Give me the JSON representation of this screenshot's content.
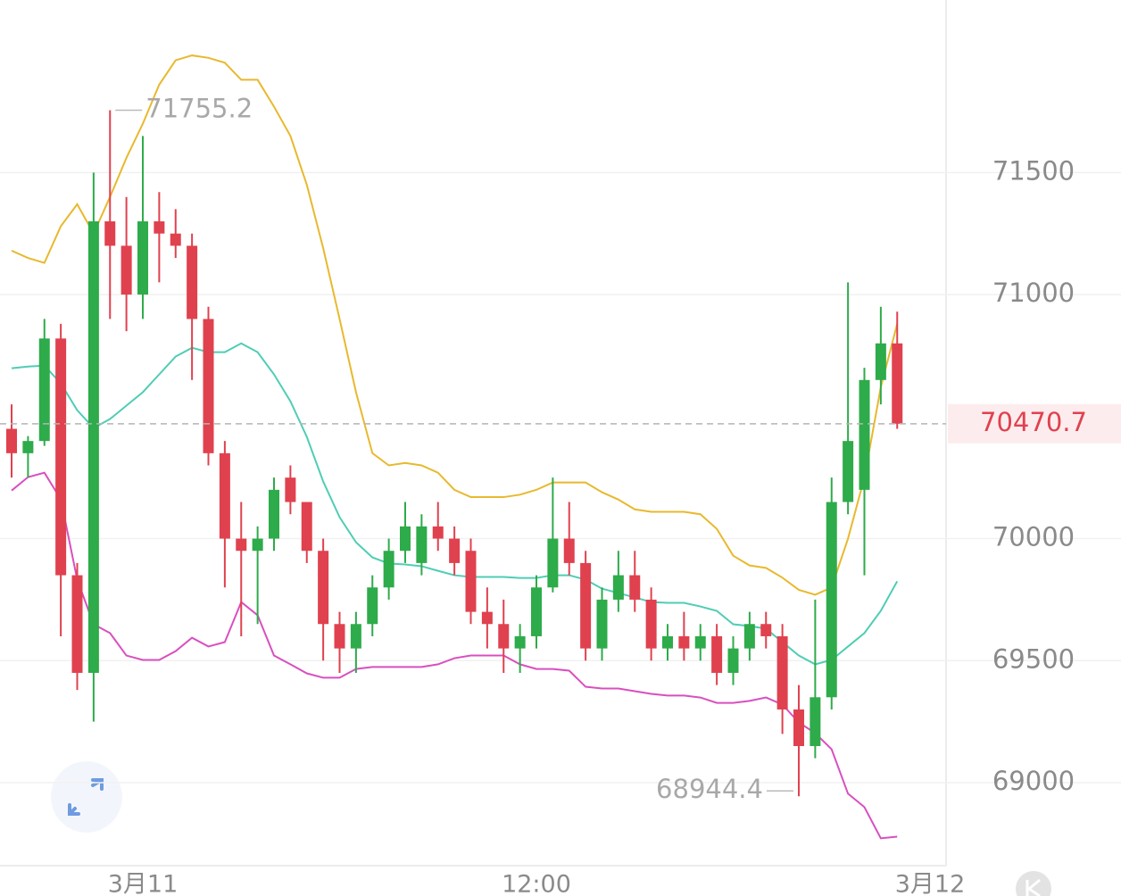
{
  "chart_data": {
    "type": "candlestick",
    "x": [
      -4.0,
      -3.5,
      -3.0,
      -2.5,
      -2.0,
      -1.5,
      -1.0,
      -0.5,
      0.0,
      0.5,
      1.0,
      1.5,
      2.0,
      2.5,
      3.0,
      3.5,
      4.0,
      4.5,
      5.0,
      5.5,
      6.0,
      6.5,
      7.0,
      7.5,
      8.0,
      8.5,
      9.0,
      9.5,
      10.0,
      10.5,
      11.0,
      11.5,
      12.0,
      12.5,
      13.0,
      13.5,
      14.0,
      14.5,
      15.0,
      15.5,
      16.0,
      16.5,
      17.0,
      17.5,
      18.0,
      18.5,
      19.0,
      19.5,
      20.0,
      20.5,
      21.0,
      21.5,
      22.0,
      22.5,
      23.0
    ],
    "open": [
      70450,
      70350,
      70400,
      70820,
      69850,
      69450,
      71300,
      71200,
      71000,
      71300,
      71250,
      71200,
      70900,
      70350,
      70000,
      69950,
      70000,
      70250,
      70150,
      69950,
      69650,
      69550,
      69650,
      69800,
      69950,
      69900,
      70050,
      70000,
      69950,
      69700,
      69650,
      69550,
      69600,
      69800,
      70000,
      69900,
      69550,
      69750,
      69850,
      69750,
      69550,
      69600,
      69550,
      69600,
      69450,
      69550,
      69650,
      69600,
      69300,
      69150,
      69350,
      70150,
      70200,
      70650,
      70800
    ],
    "high": [
      70550,
      70420,
      70900,
      70880,
      69900,
      71500,
      71755.2,
      71400,
      71650,
      71420,
      71350,
      71250,
      70950,
      70400,
      70150,
      70050,
      70250,
      70300,
      70150,
      70000,
      69700,
      69700,
      69850,
      70000,
      70150,
      70100,
      70150,
      70050,
      70000,
      69800,
      69750,
      69650,
      69850,
      70250,
      70150,
      69950,
      69800,
      69950,
      69950,
      69800,
      69650,
      69700,
      69650,
      69650,
      69600,
      69700,
      69700,
      69650,
      69400,
      69750,
      70250,
      71050,
      70700,
      70950,
      70930
    ],
    "low": [
      70250,
      70250,
      70380,
      69600,
      69380,
      69250,
      70900,
      70850,
      70900,
      71050,
      71150,
      70650,
      70300,
      69800,
      69600,
      69650,
      69950,
      70100,
      69900,
      69500,
      69450,
      69450,
      69600,
      69750,
      69900,
      69850,
      69950,
      69850,
      69650,
      69550,
      69450,
      69450,
      69550,
      69780,
      69850,
      69500,
      69500,
      69700,
      69700,
      69500,
      69500,
      69500,
      69500,
      69400,
      69400,
      69500,
      69550,
      69200,
      68944.4,
      69100,
      69300,
      70100,
      69850,
      70550,
      70450
    ],
    "close": [
      70350,
      70400,
      70820,
      69850,
      69450,
      71300,
      71200,
      71000,
      71300,
      71250,
      71200,
      70900,
      70350,
      70000,
      69950,
      70000,
      70200,
      70150,
      69950,
      69650,
      69550,
      69650,
      69800,
      69950,
      70050,
      70050,
      70000,
      69900,
      69700,
      69650,
      69550,
      69600,
      69800,
      70000,
      69900,
      69550,
      69750,
      69850,
      69750,
      69550,
      69600,
      69550,
      69600,
      69450,
      69550,
      69650,
      69600,
      69300,
      69150,
      69350,
      70150,
      70400,
      70650,
      70800,
      70470.7
    ],
    "up_color": "#2eab4a",
    "down_color": "#e0414e",
    "series": [
      {
        "color": "#e8b92e",
        "values": [
          71180,
          71150,
          71130,
          71280,
          71370,
          71250,
          71400,
          71560,
          71700,
          71860,
          71960,
          71980,
          71970,
          71950,
          71880,
          71880,
          71770,
          71650,
          71450,
          71190,
          70900,
          70600,
          70350,
          70300,
          70310,
          70300,
          70270,
          70200,
          70170,
          70170,
          70170,
          70180,
          70200,
          70230,
          70230,
          70230,
          70190,
          70160,
          70120,
          70110,
          70110,
          70110,
          70100,
          70040,
          69930,
          69890,
          69880,
          69840,
          69790,
          69770,
          69800,
          70000,
          70250,
          70620,
          70880
        ]
      },
      {
        "color": "#4fcdb5",
        "values": [
          70698,
          70705,
          70709,
          70636,
          70526,
          70453,
          70490,
          70545,
          70600,
          70673,
          70746,
          70782,
          70764,
          70764,
          70800,
          70764,
          70673,
          70563,
          70417,
          70234,
          70088,
          69985,
          69923,
          69898,
          69894,
          69887,
          69868,
          69850,
          69843,
          69843,
          69843,
          69839,
          69839,
          69850,
          69850,
          69832,
          69795,
          69777,
          69759,
          69740,
          69737,
          69737,
          69722,
          69704,
          69649,
          69642,
          69631,
          69576,
          69521,
          69485,
          69503,
          69558,
          69613,
          69704,
          69825
        ]
      },
      {
        "color": "#d94fbf",
        "values": [
          70197,
          70252,
          70270,
          70161,
          69832,
          69649,
          69613,
          69521,
          69503,
          69503,
          69539,
          69594,
          69558,
          69576,
          69740,
          69686,
          69521,
          69485,
          69448,
          69430,
          69430,
          69466,
          69474,
          69474,
          69474,
          69474,
          69485,
          69510,
          69521,
          69521,
          69521,
          69485,
          69466,
          69466,
          69459,
          69393,
          69386,
          69386,
          69375,
          69364,
          69357,
          69357,
          69349,
          69327,
          69327,
          69335,
          69349,
          69320,
          69247,
          69203,
          69137,
          68955,
          68900,
          68772,
          68779
        ]
      }
    ],
    "ylim": [
      68660,
      72207
    ],
    "yticks": [
      69000,
      69500,
      70000,
      71000,
      71500
    ],
    "xlim": [
      -4.354,
      24.49
    ],
    "xticks": [
      {
        "value": 0,
        "label": "3月11"
      },
      {
        "value": 12,
        "label": "12:00"
      },
      {
        "value": 24,
        "label": "3月12"
      }
    ],
    "grid": true
  }
}
